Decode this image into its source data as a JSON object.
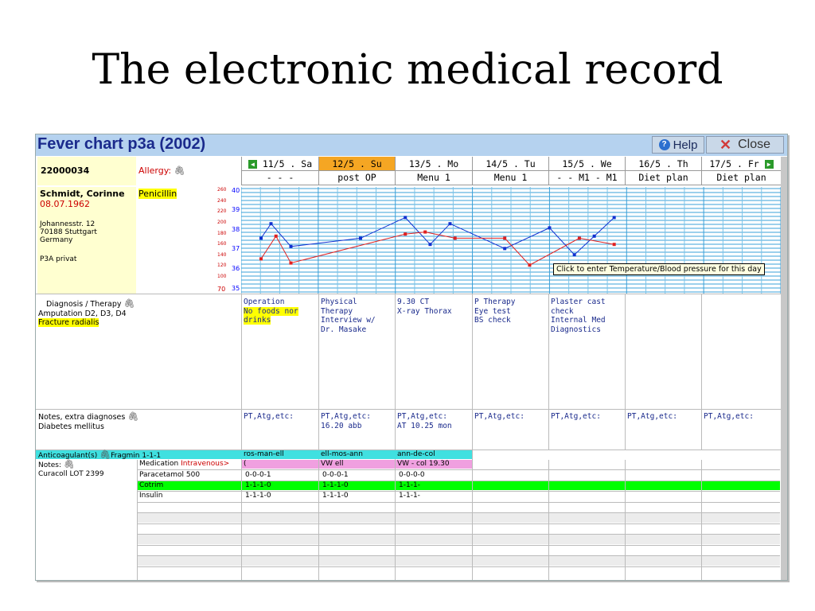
{
  "slide": {
    "title": "The electronic medical record"
  },
  "header": {
    "title": "Fever chart p3a (2002)",
    "help_label": "Help",
    "close_label": "Close"
  },
  "patient": {
    "id": "22000034",
    "allergy_label": "Allergy:",
    "allergy_value": "Penicillin",
    "name": "Schmidt, Corinne",
    "dob": "08.07.1962",
    "address": [
      "Johannesstr. 12",
      "70188 Stuttgart",
      "Germany"
    ],
    "insurance": "P3A privat"
  },
  "days": [
    {
      "date": "11/5 . Sa",
      "sub": "- - -"
    },
    {
      "date": "12/5 . Su",
      "sub": "post OP"
    },
    {
      "date": "13/5 . Mo",
      "sub": "Menu 1"
    },
    {
      "date": "14/5 . Tu",
      "sub": "Menu 1"
    },
    {
      "date": "15/5 . We",
      "sub": "- - M1 - M1"
    },
    {
      "date": "16/5 . Th",
      "sub": "Diet plan"
    },
    {
      "date": "17/5 . Fr",
      "sub": "Diet plan"
    }
  ],
  "axis": {
    "bp_ticks": [
      "260",
      "240",
      "220",
      "200",
      "180",
      "160",
      "140",
      "120",
      "100",
      "70"
    ],
    "temp_ticks": [
      "40",
      "39",
      "38",
      "37",
      "36",
      "35"
    ]
  },
  "chart_data": {
    "type": "line",
    "series": [
      {
        "color": "#1030d0",
        "points": [
          [
            0.4,
            37.6
          ],
          [
            0.6,
            38.3
          ],
          [
            1.0,
            37.2
          ],
          [
            2.4,
            37.6
          ],
          [
            3.3,
            38.6
          ],
          [
            3.8,
            37.3
          ],
          [
            4.2,
            38.3
          ],
          [
            5.3,
            37.1
          ],
          [
            6.2,
            38.1
          ],
          [
            6.7,
            36.8
          ],
          [
            7.1,
            37.7
          ],
          [
            7.5,
            38.6
          ]
        ]
      },
      {
        "color": "#e02020",
        "points": [
          [
            0.4,
            36.6
          ],
          [
            0.7,
            37.7
          ],
          [
            1.0,
            36.4
          ],
          [
            3.3,
            37.8
          ],
          [
            3.7,
            37.9
          ],
          [
            4.3,
            37.6
          ],
          [
            5.3,
            37.6
          ],
          [
            5.8,
            36.3
          ],
          [
            6.8,
            37.6
          ],
          [
            7.5,
            37.3
          ]
        ]
      }
    ]
  },
  "tooltip": "Click to enter Temperature/Blood pressure for this day",
  "diagnosis": {
    "label": "Diagnosis / Therapy",
    "line1": "Amputation D2, D3, D4",
    "line2": "Fracture radialis"
  },
  "therapy": [
    "Operation\nNo foods nor\ndrinks",
    "Physical Therapy\nInterview w/\nDr. Masake",
    "9.30 CT\nX-ray Thorax",
    "P Therapy\nEye test\nBS check",
    "Plaster cast\ncheck\nInternal Med\nDiagnostics",
    "",
    ""
  ],
  "notes": {
    "label": "Notes, extra diagnoses",
    "text": "Diabetes mellitus"
  },
  "notes_days": [
    "PT,Atg,etc:",
    "PT,Atg,etc:\n16.20 abb",
    "PT,Atg,etc:\nAT 10.25 mon",
    "PT,Atg,etc:",
    "PT,Atg,etc:",
    "PT,Atg,etc:",
    "PT,Atg,etc:"
  ],
  "anticoag": {
    "label": "Anticoagulant(s)",
    "value": "Fragmin 1-1-1",
    "days": [
      "ros-man-ell",
      "ell-mos-ann",
      "ann-de-col"
    ]
  },
  "medication": {
    "notes_label": "Notes:",
    "notes_value": "Curacoll LOT 2399",
    "header": "Medication",
    "header_route": "Intravenous>",
    "header_days": [
      "(",
      "VW ell",
      "VW - col 19.30"
    ],
    "rows": [
      {
        "name": "Paracetamol 500",
        "days": [
          "0-0-0-1",
          "0-0-0-1",
          "0-0-0-0"
        ]
      },
      {
        "name": "Cotrim",
        "days": [
          "1-1-1-0",
          "1-1-1-0",
          "1-1-1-"
        ]
      },
      {
        "name": "Insulin",
        "days": [
          "1-1-1-0",
          "1-1-1-0",
          "1-1-1-"
        ]
      }
    ]
  }
}
